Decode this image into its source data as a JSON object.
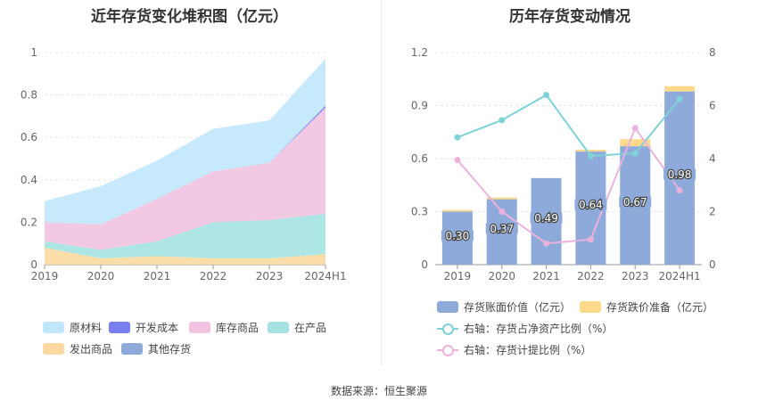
{
  "left_title": "近年存货变化堆积图（亿元）",
  "right_title": "历年存货变动情况",
  "source": "数据来源：恒生聚源",
  "chart_data": [
    {
      "type": "area",
      "stacked": true,
      "title": "近年存货变化堆积图（亿元）",
      "categories": [
        "2019",
        "2020",
        "2021",
        "2022",
        "2023",
        "2024H1"
      ],
      "ylim": [
        0,
        1
      ],
      "yticks": [
        "0",
        "0.2",
        "0.4",
        "0.6",
        "0.8",
        "1"
      ],
      "grid": true,
      "legend_position": "bottom",
      "series": [
        {
          "name": "发出商品",
          "color": "#fbd9a0",
          "values": [
            0.08,
            0.03,
            0.04,
            0.03,
            0.03,
            0.05
          ]
        },
        {
          "name": "在产品",
          "color": "#a4e3e1",
          "values": [
            0.03,
            0.04,
            0.07,
            0.17,
            0.18,
            0.19
          ]
        },
        {
          "name": "库存商品",
          "color": "#f0c3e0",
          "values": [
            0.09,
            0.12,
            0.2,
            0.24,
            0.27,
            0.5
          ]
        },
        {
          "name": "开发成本",
          "color": "#7a7fef",
          "values": [
            0,
            0,
            0,
            0,
            0,
            0.01
          ]
        },
        {
          "name": "原材料",
          "color": "#c0e7fb",
          "values": [
            0.1,
            0.18,
            0.18,
            0.2,
            0.2,
            0.22
          ]
        },
        {
          "name": "其他存货",
          "color": "#8eaadb",
          "values": [
            0,
            0,
            0,
            0,
            0,
            0
          ]
        }
      ],
      "legend_order": [
        "原材料",
        "开发成本",
        "库存商品",
        "在产品",
        "发出商品",
        "其他存货"
      ]
    },
    {
      "type": "bar",
      "stacked": true,
      "title": "历年存货变动情况",
      "categories": [
        "2019",
        "2020",
        "2021",
        "2022",
        "2023",
        "2024H1"
      ],
      "ylim": [
        0,
        1.2
      ],
      "yticks": [
        "0",
        "0.3",
        "0.6",
        "0.9",
        "1.2"
      ],
      "y2lim": [
        0,
        8
      ],
      "y2ticks": [
        "0",
        "2",
        "4",
        "6",
        "8"
      ],
      "grid": true,
      "legend_position": "bottom",
      "bars": [
        {
          "name": "存货账面价值（亿元）",
          "color": "#8eaadb",
          "values": [
            0.3,
            0.37,
            0.49,
            0.64,
            0.67,
            0.98
          ],
          "labels": [
            "0.30",
            "0.37",
            "0.49",
            "0.64",
            "0.67",
            "0.98"
          ]
        },
        {
          "name": "存货跌价准备（亿元）",
          "color": "#fdd98c",
          "values": [
            0.01,
            0.01,
            0.0,
            0.01,
            0.04,
            0.03
          ]
        }
      ],
      "lines": [
        {
          "name": "右轴：存货占净资产比例（%）",
          "color": "#7fd3d7",
          "values": [
            4.8,
            5.45,
            6.4,
            4.1,
            4.2,
            6.25
          ]
        },
        {
          "name": "右轴：存货计提比例（%）",
          "color": "#eab3dc",
          "values": [
            3.95,
            2.0,
            0.8,
            0.95,
            5.15,
            2.8
          ]
        }
      ]
    }
  ]
}
